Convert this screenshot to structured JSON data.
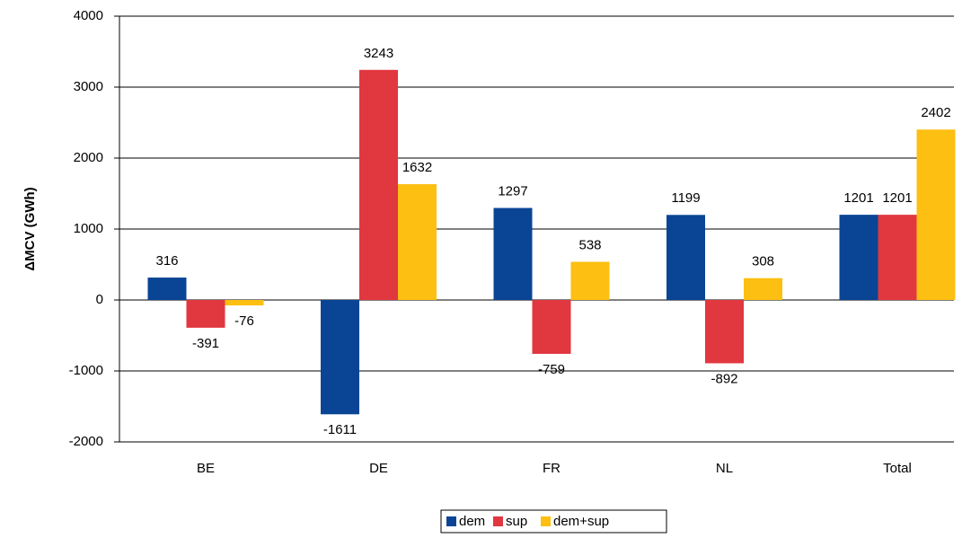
{
  "chart_data": {
    "type": "bar",
    "y_label": "ΔMCV (GWh)",
    "categories": [
      "BE",
      "DE",
      "FR",
      "NL",
      "Total"
    ],
    "series": [
      {
        "name": "dem",
        "color": "#0a4595",
        "values": [
          316,
          -1611,
          1297,
          1199,
          1201
        ]
      },
      {
        "name": "sup",
        "color": "#e1373f",
        "values": [
          -391,
          3243,
          -759,
          -892,
          1201
        ]
      },
      {
        "name": "dem+sup",
        "color": "#fcbf12",
        "values": [
          -76,
          1632,
          538,
          308,
          2402
        ]
      }
    ],
    "ylim": [
      -2000,
      4000
    ],
    "yticks": [
      -2000,
      -1000,
      0,
      1000,
      2000,
      3000,
      4000
    ],
    "grid": true,
    "legend": "bottom",
    "data_labels": true
  }
}
